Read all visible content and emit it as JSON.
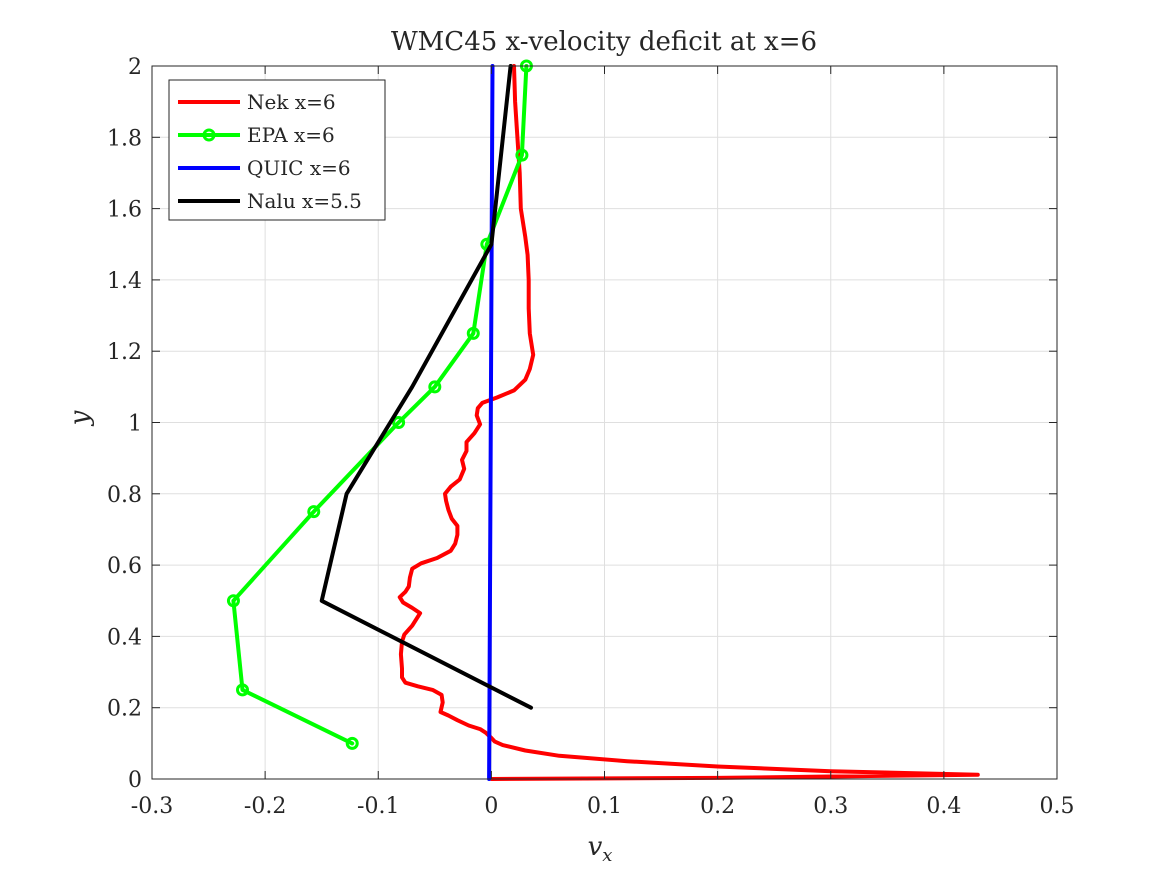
{
  "chart_data": {
    "type": "line",
    "title": "WMC45 x-velocity deficit at x=6",
    "xlabel": "v",
    "xlabel_subscript": "x",
    "ylabel": "y",
    "xlim": [
      -0.3,
      0.5
    ],
    "ylim": [
      0,
      2
    ],
    "xticks": [
      -0.3,
      -0.2,
      -0.1,
      0,
      0.1,
      0.2,
      0.3,
      0.4,
      0.5
    ],
    "xtick_labels": [
      "-0.3",
      "-0.2",
      "-0.1",
      "0",
      "0.1",
      "0.2",
      "0.3",
      "0.4",
      "0.5"
    ],
    "yticks": [
      0,
      0.2,
      0.4,
      0.6,
      0.8,
      1,
      1.2,
      1.4,
      1.6,
      1.8,
      2
    ],
    "ytick_labels": [
      "0",
      "0.2",
      "0.4",
      "0.6",
      "0.8",
      "1",
      "1.2",
      "1.4",
      "1.6",
      "1.8",
      "2"
    ],
    "grid": true,
    "legend_position": "top-left",
    "series": [
      {
        "name": "Nek x=6",
        "color": "#ff0000",
        "marker": "none",
        "points": [
          [
            0.0,
            0.0
          ],
          [
            0.2,
            0.003
          ],
          [
            0.43,
            0.012
          ],
          [
            0.3,
            0.022
          ],
          [
            0.2,
            0.035
          ],
          [
            0.12,
            0.05
          ],
          [
            0.06,
            0.065
          ],
          [
            0.03,
            0.08
          ],
          [
            0.01,
            0.095
          ],
          [
            0.003,
            0.105
          ],
          [
            0.0,
            0.115
          ],
          [
            -0.005,
            0.13
          ],
          [
            -0.01,
            0.14
          ],
          [
            -0.02,
            0.15
          ],
          [
            -0.03,
            0.165
          ],
          [
            -0.038,
            0.178
          ],
          [
            -0.045,
            0.188
          ],
          [
            -0.043,
            0.215
          ],
          [
            -0.044,
            0.236
          ],
          [
            -0.052,
            0.25
          ],
          [
            -0.065,
            0.26
          ],
          [
            -0.076,
            0.27
          ],
          [
            -0.079,
            0.285
          ],
          [
            -0.079,
            0.31
          ],
          [
            -0.08,
            0.35
          ],
          [
            -0.079,
            0.385
          ],
          [
            -0.077,
            0.405
          ],
          [
            -0.07,
            0.43
          ],
          [
            -0.063,
            0.465
          ],
          [
            -0.07,
            0.48
          ],
          [
            -0.078,
            0.495
          ],
          [
            -0.081,
            0.51
          ],
          [
            -0.076,
            0.525
          ],
          [
            -0.073,
            0.54
          ],
          [
            -0.072,
            0.565
          ],
          [
            -0.07,
            0.59
          ],
          [
            -0.062,
            0.605
          ],
          [
            -0.048,
            0.62
          ],
          [
            -0.036,
            0.64
          ],
          [
            -0.032,
            0.66
          ],
          [
            -0.03,
            0.685
          ],
          [
            -0.03,
            0.71
          ],
          [
            -0.035,
            0.73
          ],
          [
            -0.038,
            0.755
          ],
          [
            -0.04,
            0.78
          ],
          [
            -0.041,
            0.8
          ],
          [
            -0.036,
            0.82
          ],
          [
            -0.028,
            0.84
          ],
          [
            -0.024,
            0.87
          ],
          [
            -0.026,
            0.895
          ],
          [
            -0.022,
            0.92
          ],
          [
            -0.022,
            0.945
          ],
          [
            -0.015,
            0.97
          ],
          [
            -0.01,
            0.995
          ],
          [
            -0.013,
            1.02
          ],
          [
            -0.012,
            1.04
          ],
          [
            -0.008,
            1.055
          ],
          [
            0.005,
            1.07
          ],
          [
            0.02,
            1.09
          ],
          [
            0.03,
            1.12
          ],
          [
            0.034,
            1.15
          ],
          [
            0.037,
            1.19
          ],
          [
            0.034,
            1.25
          ],
          [
            0.033,
            1.32
          ],
          [
            0.033,
            1.4
          ],
          [
            0.032,
            1.47
          ],
          [
            0.03,
            1.52
          ],
          [
            0.026,
            1.6
          ],
          [
            0.025,
            1.7
          ],
          [
            0.023,
            1.8
          ],
          [
            0.021,
            1.9
          ],
          [
            0.02,
            2.0
          ]
        ]
      },
      {
        "name": "EPA x=6",
        "color": "#00ff00",
        "marker": "circle",
        "points": [
          [
            -0.123,
            0.1
          ],
          [
            -0.22,
            0.25
          ],
          [
            -0.228,
            0.5
          ],
          [
            -0.157,
            0.75
          ],
          [
            -0.082,
            1.0
          ],
          [
            -0.05,
            1.1
          ],
          [
            -0.016,
            1.25
          ],
          [
            -0.004,
            1.5
          ],
          [
            0.027,
            1.75
          ],
          [
            0.031,
            2.0
          ]
        ]
      },
      {
        "name": "QUIC x=6",
        "color": "#0000ff",
        "marker": "none",
        "points": [
          [
            -0.002,
            0.0
          ],
          [
            0.001,
            2.0
          ]
        ]
      },
      {
        "name": "Nalu x=5.5",
        "color": "#000000",
        "marker": "none",
        "points": [
          [
            0.035,
            0.2
          ],
          [
            -0.15,
            0.5
          ],
          [
            -0.128,
            0.8
          ],
          [
            -0.07,
            1.1
          ],
          [
            0.0,
            1.5
          ],
          [
            0.017,
            2.0
          ]
        ]
      }
    ]
  }
}
